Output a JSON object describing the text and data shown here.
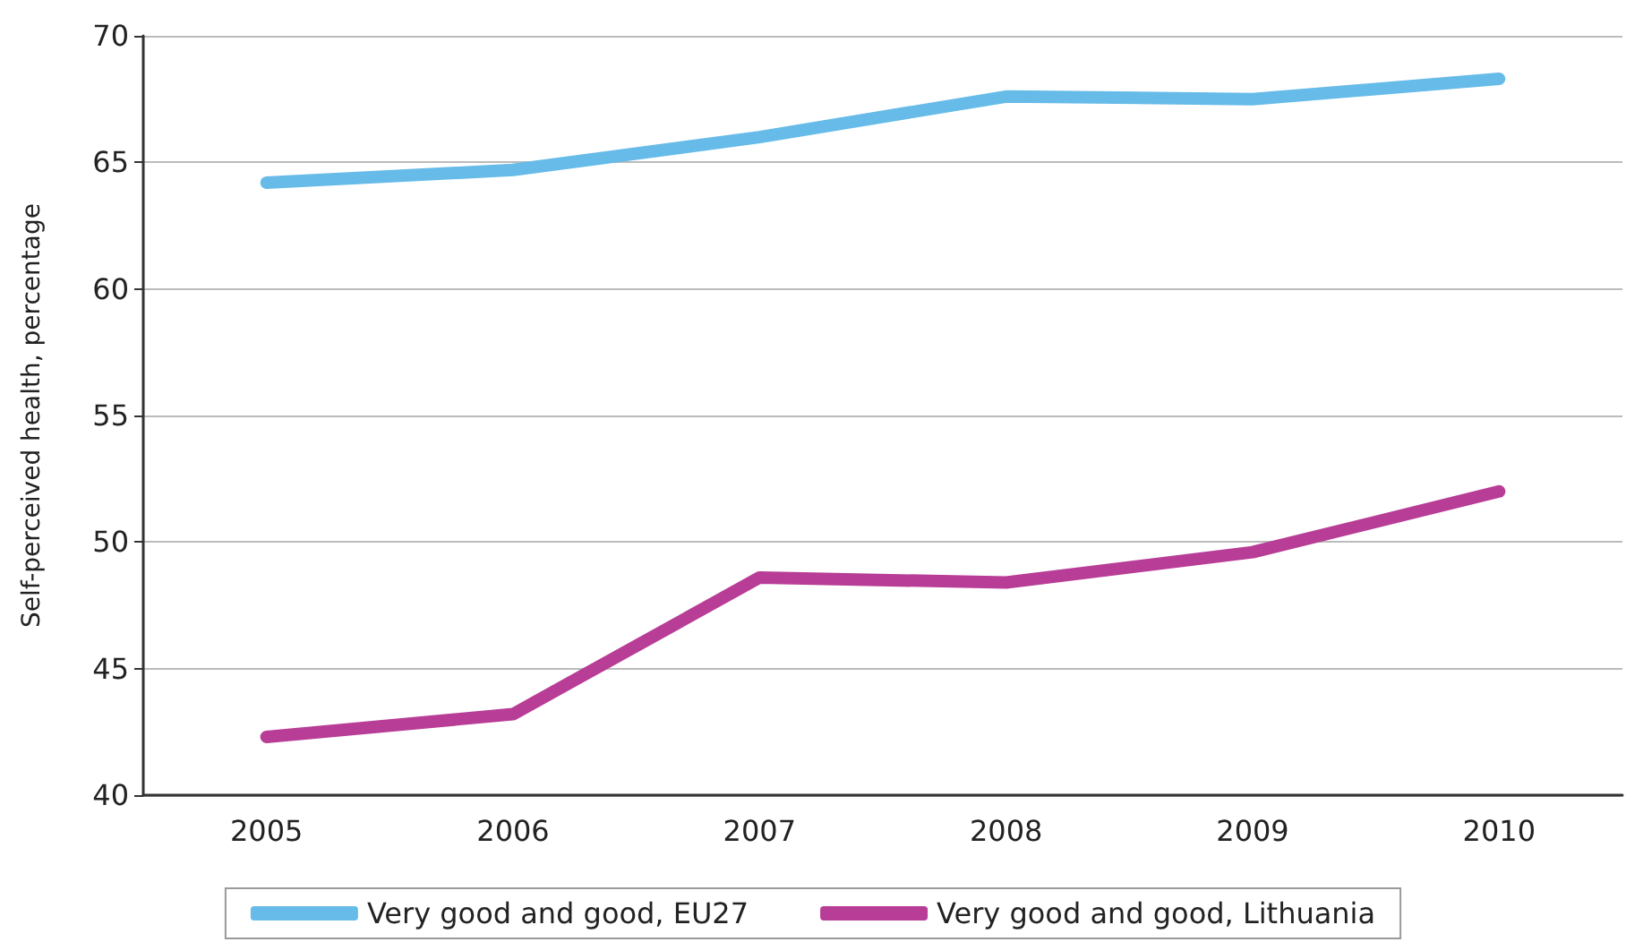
{
  "chart_data": {
    "type": "line",
    "ylabel": "Self-perceived health, percentage",
    "categories": [
      "2005",
      "2006",
      "2007",
      "2008",
      "2009",
      "2010"
    ],
    "series": [
      {
        "name": "Very good and good, EU27",
        "color": "#66bbe8",
        "values": [
          64.2,
          64.7,
          66.0,
          67.6,
          67.5,
          68.3
        ]
      },
      {
        "name": "Very good and good, Lithuania",
        "color": "#b83d96",
        "values": [
          42.3,
          43.2,
          48.6,
          48.4,
          49.6,
          52.0
        ]
      }
    ],
    "ylim": [
      40,
      70
    ],
    "yticks": [
      40,
      45,
      50,
      55,
      60,
      65,
      70
    ],
    "grid": "y",
    "legend": "bottom",
    "marker": "none",
    "line_style": "solid"
  }
}
